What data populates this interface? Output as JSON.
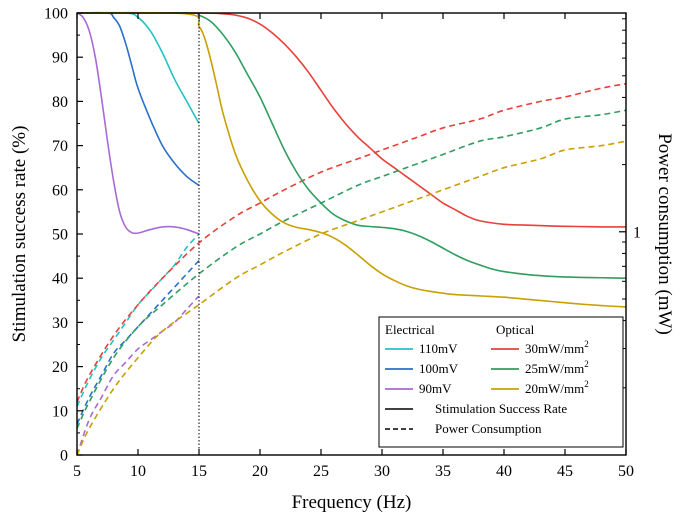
{
  "chart_data": {
    "type": "line",
    "xlabel": "Frequency (Hz)",
    "ylabel": "Stimulation success rate (%)",
    "y2label": "Power consumption (mW)",
    "xlim": [
      5,
      50
    ],
    "ylim": [
      0,
      100
    ],
    "x_ticks": [
      5,
      10,
      15,
      20,
      25,
      30,
      35,
      40,
      45,
      50
    ],
    "y_ticks": [
      0,
      10,
      20,
      30,
      40,
      50,
      60,
      70,
      80,
      90,
      100
    ],
    "y2_tick_label": "1",
    "y2_tick_position_left_units": 50.5,
    "vline_x": 15,
    "colors": {
      "cyan": "#22c3c3",
      "blue": "#2a6fcb",
      "purple": "#a86ad6",
      "red": "#e8403a",
      "green": "#2f9e5f",
      "gold": "#c9a000"
    },
    "legend": {
      "placement": "bottom-right",
      "electrical_title": "Electrical",
      "optical_title": "Optical",
      "electrical": [
        {
          "label": "110mV",
          "color": "#22c3c3"
        },
        {
          "label": "100mV",
          "color": "#2a6fcb"
        },
        {
          "label": "90mV",
          "color": "#a86ad6"
        }
      ],
      "optical": [
        {
          "label": "30mW/mm",
          "sup": "2",
          "color": "#e8403a"
        },
        {
          "label": "25mW/mm",
          "sup": "2",
          "color": "#2f9e5f"
        },
        {
          "label": "20mW/mm",
          "sup": "2",
          "color": "#c9a000"
        }
      ],
      "style_solid": "Stimulation Success Rate",
      "style_dashed": "Power Consumption"
    },
    "series": [
      {
        "name": "110mV",
        "kind": "success",
        "color": "#22c3c3",
        "x": [
          5,
          9,
          10,
          11,
          12,
          13,
          14,
          15
        ],
        "y": [
          100,
          100,
          99,
          96,
          91,
          85,
          80,
          75
        ]
      },
      {
        "name": "110mV",
        "kind": "power",
        "color": "#22c3c3",
        "x": [
          5,
          6,
          7,
          8,
          9,
          10,
          11,
          12,
          13,
          14,
          15
        ],
        "y": [
          11,
          17,
          22,
          26,
          30,
          34,
          37,
          40,
          43,
          47,
          50
        ]
      },
      {
        "name": "100mV",
        "kind": "success",
        "color": "#2a6fcb",
        "x": [
          5,
          7.5,
          8,
          8.5,
          9,
          9.5,
          10,
          11,
          12,
          13,
          14,
          15
        ],
        "y": [
          100,
          100,
          99,
          97,
          93,
          88,
          83,
          76,
          70,
          66,
          63,
          61
        ]
      },
      {
        "name": "100mV",
        "kind": "power",
        "color": "#2a6fcb",
        "x": [
          5,
          6,
          7,
          8,
          9,
          10,
          11,
          12,
          13,
          14,
          15
        ],
        "y": [
          7,
          13,
          18,
          23,
          26,
          29,
          32,
          35,
          38,
          41,
          44
        ]
      },
      {
        "name": "90mV",
        "kind": "success",
        "color": "#a86ad6",
        "x": [
          5,
          5.5,
          6,
          6.5,
          7,
          7.5,
          8,
          8.5,
          9,
          9.5,
          10,
          11,
          12,
          13,
          14,
          15
        ],
        "y": [
          100,
          99,
          96,
          90,
          81,
          71,
          62,
          55,
          51.5,
          50.3,
          50.2,
          51,
          51.6,
          51.6,
          51,
          50
        ]
      },
      {
        "name": "90mV",
        "kind": "power",
        "color": "#a86ad6",
        "x": [
          5,
          6,
          7,
          8,
          9,
          10,
          11,
          12,
          13,
          14,
          15
        ],
        "y": [
          0,
          8,
          13,
          18,
          21,
          24,
          26,
          28,
          30,
          33,
          36
        ]
      },
      {
        "name": "30mW/mm2",
        "kind": "success",
        "color": "#e8403a",
        "x": [
          5,
          15,
          17,
          18,
          19,
          20,
          21,
          22,
          23,
          24,
          25,
          26,
          27,
          28,
          29,
          30,
          31,
          32,
          33,
          34,
          35,
          36,
          37,
          38,
          40,
          42,
          44,
          46,
          48,
          50
        ],
        "y": [
          100,
          100,
          99.8,
          99.5,
          98.8,
          97.5,
          95.5,
          93,
          90,
          86.5,
          82.5,
          78.5,
          75,
          72,
          69.5,
          67,
          65,
          63,
          61,
          59,
          57,
          55.5,
          54,
          53,
          52.2,
          52,
          51.8,
          51.7,
          51.6,
          51.6
        ]
      },
      {
        "name": "30mW/mm2",
        "kind": "power",
        "color": "#e8403a",
        "x": [
          5,
          6,
          8,
          10,
          12,
          15,
          18,
          20,
          22,
          25,
          28,
          30,
          33,
          35,
          38,
          40,
          43,
          45,
          48,
          50
        ],
        "y": [
          12,
          18,
          27,
          34,
          40,
          48,
          54,
          57,
          60,
          64,
          67,
          69,
          72,
          74,
          76,
          78,
          80,
          81,
          83,
          84
        ]
      },
      {
        "name": "25mW/mm2",
        "kind": "success",
        "color": "#2f9e5f",
        "x": [
          5,
          14,
          15,
          16,
          17,
          18,
          19,
          20,
          21,
          22,
          23,
          24,
          25,
          26,
          27,
          28,
          29,
          30,
          31,
          32,
          33,
          34,
          35,
          36,
          37,
          38,
          39,
          40,
          42,
          44,
          46,
          48,
          50
        ],
        "y": [
          100,
          100,
          99.5,
          98,
          95,
          91,
          86,
          81,
          75,
          69,
          64,
          60,
          57,
          54.5,
          53,
          52,
          51.7,
          51.5,
          51.2,
          50.6,
          49.6,
          48.3,
          46.8,
          45.3,
          44,
          43,
          42.1,
          41.5,
          40.8,
          40.4,
          40.2,
          40.1,
          40
        ]
      },
      {
        "name": "25mW/mm2",
        "kind": "power",
        "color": "#2f9e5f",
        "x": [
          5,
          6,
          8,
          10,
          12,
          15,
          18,
          20,
          22,
          25,
          28,
          30,
          33,
          35,
          38,
          40,
          43,
          45,
          48,
          50
        ],
        "y": [
          6,
          12,
          22,
          29,
          34,
          41,
          47,
          50,
          53,
          57,
          61,
          63,
          66,
          68,
          71,
          72,
          74,
          76,
          77,
          78
        ]
      },
      {
        "name": "20mW/mm2",
        "kind": "success",
        "color": "#c9a000",
        "x": [
          5,
          14,
          15,
          15.5,
          16,
          16.5,
          17,
          18,
          19,
          20,
          21,
          22,
          23,
          24,
          25,
          26,
          27,
          28,
          29,
          30,
          31,
          32,
          33,
          34,
          35,
          36,
          38,
          40,
          42,
          44,
          46,
          48,
          50
        ],
        "y": [
          100,
          99.8,
          97,
          94,
          89,
          83,
          77,
          68,
          62,
          57.5,
          54.5,
          52.5,
          51.5,
          51,
          50.3,
          49.2,
          47.5,
          45.3,
          43,
          41,
          39.5,
          38.3,
          37.5,
          37,
          36.6,
          36.3,
          36,
          35.7,
          35.2,
          34.7,
          34.2,
          33.8,
          33.5
        ]
      },
      {
        "name": "20mW/mm2",
        "kind": "power",
        "color": "#c9a000",
        "x": [
          5,
          6,
          8,
          10,
          12,
          15,
          18,
          20,
          22,
          25,
          28,
          30,
          33,
          35,
          38,
          40,
          43,
          45,
          48,
          50
        ],
        "y": [
          0,
          6,
          15,
          22,
          28,
          34,
          40,
          43,
          46,
          50,
          53,
          55,
          58,
          60,
          63,
          65,
          67,
          69,
          70,
          71
        ]
      }
    ]
  }
}
